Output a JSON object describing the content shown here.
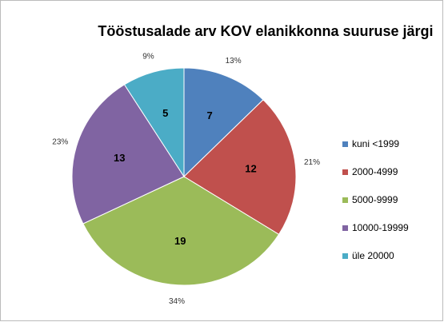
{
  "chart_data": {
    "type": "pie",
    "title": "Tööstusalade arv KOV elanikkonna suuruse järgi",
    "categories": [
      "kuni <1999",
      "2000-4999",
      "5000-9999",
      "10000-19999",
      "üle 20000"
    ],
    "values": [
      7,
      12,
      19,
      13,
      5
    ],
    "percent_labels": [
      "13%",
      "21%",
      "34%",
      "23%",
      "9%"
    ],
    "colors": [
      "#4f81bd",
      "#c0504d",
      "#9bbb59",
      "#8064a2",
      "#4bacc6"
    ],
    "legend": "right"
  }
}
